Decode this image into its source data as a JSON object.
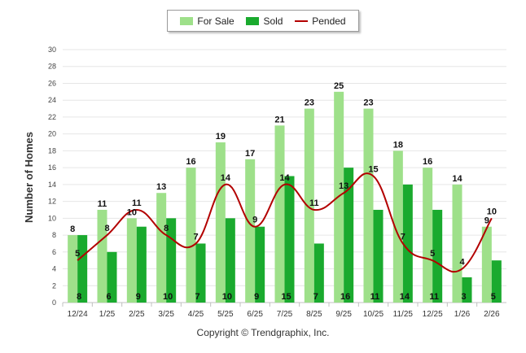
{
  "chart_data": {
    "type": "bar",
    "title": "",
    "xlabel": "",
    "ylabel": "Number of Homes",
    "ylim": [
      0,
      30
    ],
    "ytick_step": 2,
    "grid": true,
    "categories": [
      "12/24",
      "1/25",
      "2/25",
      "3/25",
      "4/25",
      "5/25",
      "6/25",
      "7/25",
      "8/25",
      "9/25",
      "10/25",
      "11/25",
      "12/25",
      "1/26",
      "2/26"
    ],
    "series": [
      {
        "name": "For Sale",
        "kind": "bar",
        "color": "#9ee08a",
        "values": [
          8,
          11,
          10,
          13,
          16,
          19,
          17,
          21,
          23,
          25,
          23,
          18,
          16,
          14,
          9
        ]
      },
      {
        "name": "Sold",
        "kind": "bar",
        "color": "#1aaa2e",
        "values": [
          8,
          6,
          9,
          10,
          7,
          10,
          9,
          15,
          7,
          16,
          11,
          14,
          11,
          3,
          5
        ]
      },
      {
        "name": "Pended",
        "kind": "line",
        "color": "#b30000",
        "values": [
          5,
          8,
          11,
          8,
          7,
          14,
          9,
          14,
          11,
          13,
          15,
          7,
          5,
          4,
          10
        ]
      }
    ],
    "legend_position": "top-center"
  },
  "footer": {
    "copyright": "Copyright © Trendgraphix, Inc."
  }
}
